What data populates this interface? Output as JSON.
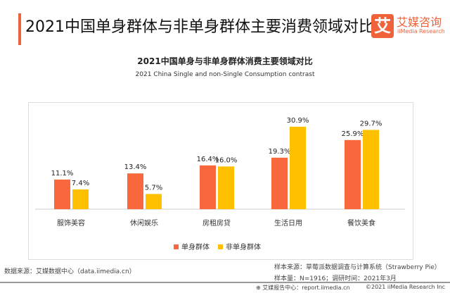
{
  "header": {
    "title": "2021中国单身群体与非单身群体主要消费领域对比"
  },
  "logo": {
    "mark": "艾",
    "name_cn": "艾媒咨询",
    "name_en": "iiMedia Research"
  },
  "colors": {
    "accent": "#f0623a",
    "single": "#f9673c",
    "non_single": "#ffc000"
  },
  "chart_data": {
    "type": "bar",
    "title": "2021中国单身与非单身群体消费主要领域对比",
    "subtitle": "2021 China Single and non-Single Consumption contrast",
    "categories": [
      "服饰美容",
      "休闲娱乐",
      "房租房贷",
      "生活日用",
      "餐饮美食"
    ],
    "series": [
      {
        "name": "单身群体",
        "values": [
          11.1,
          13.4,
          16.4,
          19.3,
          25.9
        ],
        "labels": [
          "11.1%",
          "13.4%",
          "16.4%",
          "19.3%",
          "25.9%"
        ]
      },
      {
        "name": "非单身群体",
        "values": [
          7.4,
          5.7,
          16.0,
          30.9,
          29.7
        ],
        "labels": [
          "7.4%",
          "5.7%",
          "16.0%",
          "30.9%",
          "29.7%"
        ]
      }
    ],
    "ylim": [
      0,
      35
    ],
    "grid": false,
    "legend": "bottom"
  },
  "footer": {
    "source": "数据来源：艾媒数据中心（data.iimedia.cn）",
    "sample_source": "样本来源：草莓派数据调查与计算系统（Strawberry Pie）",
    "sample_size": "样本量：N=1916；调研时间：2021年3月",
    "report": "艾媒报告中心：report.iimedia.cn",
    "copyright": "©2021  iiMedia Research Inc"
  }
}
